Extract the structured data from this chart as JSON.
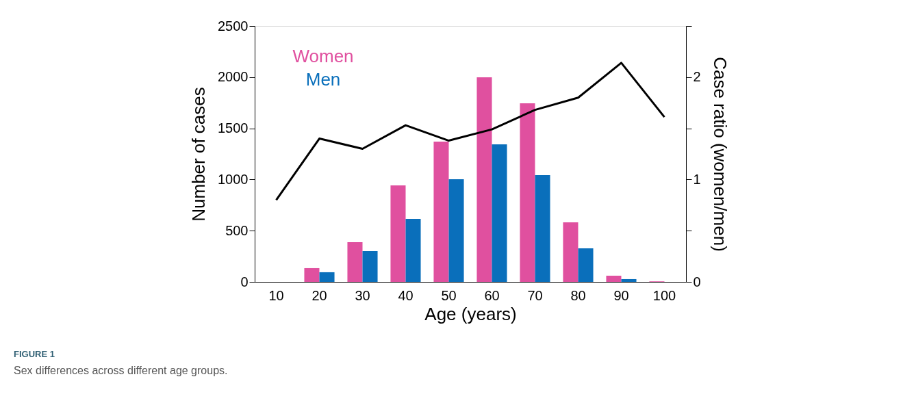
{
  "chart_data": {
    "type": "bar",
    "categories": [
      "10",
      "20",
      "30",
      "40",
      "50",
      "60",
      "70",
      "80",
      "90",
      "100"
    ],
    "xlabel": "Age (years)",
    "ylabel": "Number of cases",
    "y2label": "Case ratio (women/men)",
    "series": [
      {
        "name": "Women",
        "color": "#e0509f",
        "values": [
          0,
          134,
          388,
          943,
          1370,
          1999,
          1745,
          582,
          60,
          5
        ]
      },
      {
        "name": "Men",
        "color": "#0a6fbb",
        "values": [
          0,
          94,
          301,
          615,
          1003,
          1344,
          1043,
          328,
          27,
          0
        ]
      },
      {
        "type": "line",
        "axis": "y2",
        "color": "#000000",
        "values": [
          0.8,
          1.4,
          1.3,
          1.53,
          1.38,
          1.49,
          1.68,
          1.8,
          2.14,
          1.61
        ]
      }
    ],
    "ylim": [
      0,
      2500
    ],
    "yticks": [
      0,
      500,
      1000,
      1500,
      2000,
      2500
    ],
    "y2lim": [
      0,
      2.5
    ],
    "y2ticks": [
      0,
      {
        "value": 0.5,
        "label": null
      },
      1,
      {
        "value": 1.5,
        "label": null
      },
      2,
      {
        "value": 2.5,
        "label": null
      }
    ],
    "legend": "top left",
    "grid": false,
    "line_style": "solid",
    "marker": "none",
    "annotations": [
      "FIGURE 1",
      "Sex differences across different age groups."
    ]
  }
}
